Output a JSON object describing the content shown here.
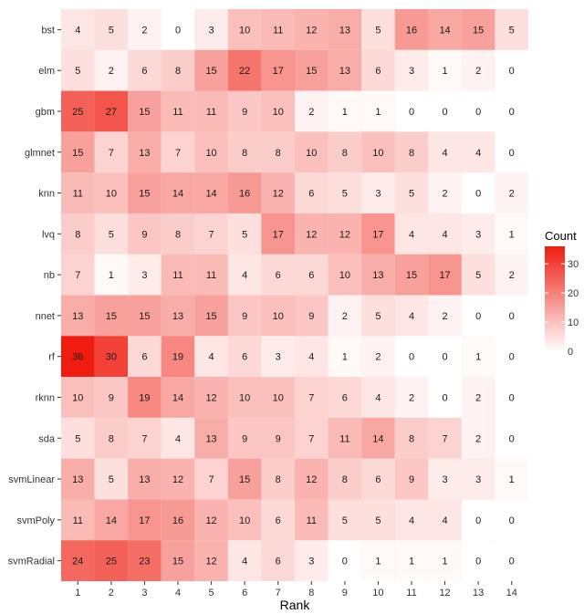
{
  "chart_data": {
    "type": "heatmap",
    "title": "",
    "xlabel": "Rank",
    "ylabel": "",
    "x": [
      "1",
      "2",
      "3",
      "4",
      "5",
      "6",
      "7",
      "8",
      "9",
      "10",
      "11",
      "12",
      "13",
      "14"
    ],
    "y": [
      "bst",
      "elm",
      "gbm",
      "glmnet",
      "knn",
      "lvq",
      "nb",
      "nnet",
      "rf",
      "rknn",
      "sda",
      "svmLinear",
      "svmPoly",
      "svmRadial"
    ],
    "values": [
      [
        4,
        5,
        2,
        0,
        3,
        10,
        11,
        12,
        13,
        5,
        16,
        14,
        15,
        5
      ],
      [
        5,
        2,
        6,
        8,
        15,
        22,
        17,
        15,
        13,
        6,
        3,
        1,
        2,
        0
      ],
      [
        25,
        27,
        15,
        11,
        11,
        9,
        10,
        2,
        1,
        1,
        0,
        0,
        0,
        0
      ],
      [
        15,
        7,
        13,
        7,
        10,
        8,
        8,
        10,
        8,
        10,
        8,
        4,
        4,
        0
      ],
      [
        11,
        10,
        15,
        14,
        14,
        16,
        12,
        6,
        5,
        3,
        5,
        2,
        0,
        2
      ],
      [
        8,
        5,
        9,
        8,
        7,
        5,
        17,
        12,
        12,
        17,
        4,
        4,
        3,
        1
      ],
      [
        7,
        1,
        3,
        11,
        11,
        4,
        6,
        6,
        10,
        13,
        15,
        17,
        5,
        2
      ],
      [
        13,
        15,
        15,
        13,
        15,
        9,
        10,
        9,
        2,
        5,
        4,
        2,
        0,
        0
      ],
      [
        36,
        30,
        6,
        19,
        4,
        6,
        3,
        4,
        1,
        2,
        0,
        0,
        1,
        0
      ],
      [
        10,
        9,
        19,
        14,
        12,
        10,
        10,
        7,
        6,
        4,
        2,
        0,
        2,
        0
      ],
      [
        5,
        8,
        7,
        4,
        13,
        9,
        9,
        7,
        11,
        14,
        8,
        7,
        2,
        0
      ],
      [
        13,
        5,
        13,
        12,
        7,
        15,
        8,
        12,
        8,
        6,
        9,
        3,
        3,
        1
      ],
      [
        11,
        14,
        17,
        16,
        12,
        10,
        6,
        11,
        5,
        5,
        4,
        4,
        0,
        0
      ],
      [
        24,
        25,
        23,
        15,
        12,
        4,
        6,
        3,
        0,
        1,
        1,
        1,
        0,
        0
      ]
    ],
    "legend": {
      "title": "Count",
      "ticks": [
        0,
        10,
        20,
        30
      ],
      "range": [
        0,
        36
      ],
      "placement": "right"
    },
    "colors": {
      "low": "#ffffff",
      "high": "#ef1c0f",
      "panel": "#ebebeb",
      "grid": "#ffffff"
    }
  }
}
